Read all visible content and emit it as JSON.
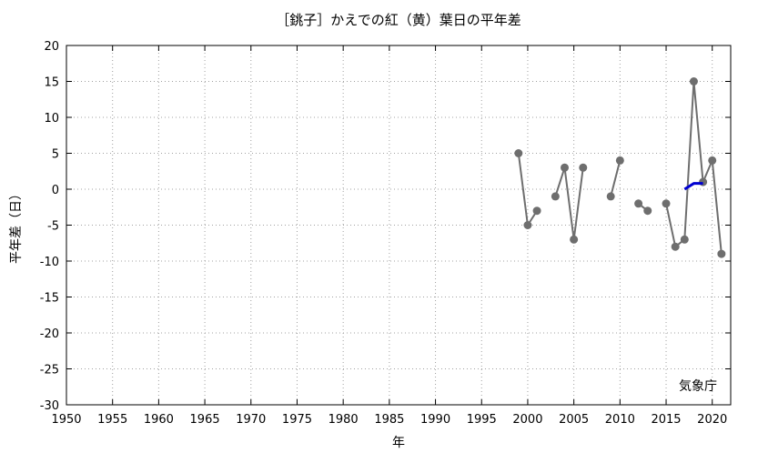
{
  "chart_data": {
    "type": "line",
    "title": "［銚子］かえでの紅（黄）葉日の平年差",
    "xlabel": "年",
    "ylabel": "平年差（日）",
    "credit": "気象庁",
    "xlim": [
      1950,
      2022
    ],
    "ylim": [
      -30,
      20
    ],
    "grid": true,
    "x_ticks": [
      "1950",
      "1955",
      "1960",
      "1965",
      "1970",
      "1975",
      "1980",
      "1985",
      "1990",
      "1995",
      "2000",
      "2005",
      "2010",
      "2015",
      "2020"
    ],
    "y_ticks": [
      "20",
      "15",
      "10",
      "5",
      "0",
      "-5",
      "-10",
      "-15",
      "-20",
      "-25",
      "-30"
    ],
    "colors": {
      "points": "#6e6e6e",
      "line": "#6e6e6e",
      "trend": "#0000d0"
    },
    "series": [
      {
        "segments": [
          [
            [
              1999,
              5
            ],
            [
              2000,
              -5
            ],
            [
              2001,
              -3
            ]
          ],
          [
            [
              2003,
              -1
            ],
            [
              2004,
              3
            ],
            [
              2005,
              -7
            ],
            [
              2006,
              3
            ]
          ],
          [
            [
              2009,
              -1
            ],
            [
              2010,
              4
            ]
          ],
          [
            [
              2012,
              -2
            ],
            [
              2013,
              -3
            ]
          ],
          [
            [
              2015,
              -2
            ],
            [
              2016,
              -8
            ],
            [
              2017,
              -7
            ],
            [
              2018,
              15
            ],
            [
              2019,
              1
            ],
            [
              2020,
              4
            ],
            [
              2021,
              -9
            ]
          ]
        ]
      },
      {
        "points": [
          [
            2017,
            0
          ],
          [
            2018,
            0.8
          ],
          [
            2019,
            0.8
          ]
        ]
      }
    ]
  }
}
